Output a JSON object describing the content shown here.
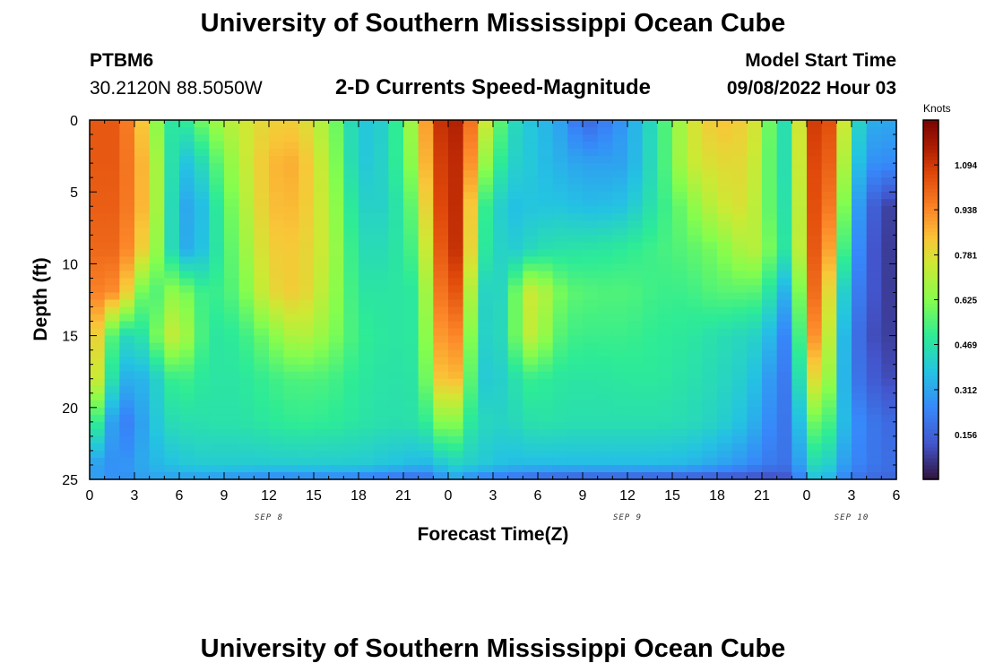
{
  "header": {
    "title": "University of Southern Mississippi Ocean Cube",
    "station": "PTBM6",
    "location": "30.2120N  88.5050W",
    "subtitle": "2-D Currents Speed-Magnitude",
    "start_label": "Model Start Time",
    "start_value": "09/08/2022 Hour 03"
  },
  "footer": {
    "title": "University of Southern Mississippi Ocean Cube"
  },
  "chart_data": {
    "type": "heatmap",
    "xlabel": "Forecast Time(Z)",
    "ylabel": "Depth (ft)",
    "x_tick_labels": [
      "0",
      "3",
      "6",
      "9",
      "12",
      "15",
      "18",
      "21",
      "0",
      "3",
      "6",
      "9",
      "12",
      "15",
      "18",
      "21",
      "0",
      "3",
      "6"
    ],
    "x_range_hours": [
      0,
      54
    ],
    "y_ticks": [
      0,
      5,
      10,
      15,
      20,
      25
    ],
    "y_range": [
      0,
      25
    ],
    "y_reversed": true,
    "date_labels": [
      {
        "label": "SEP 8",
        "hour": 12
      },
      {
        "label": "SEP 9",
        "hour": 36
      },
      {
        "label": "SEP 10",
        "hour": 51
      }
    ],
    "colorbar": {
      "title": "Knots",
      "ticks": [
        "1.094",
        "0.938",
        "0.781",
        "0.625",
        "0.469",
        "0.312",
        "0.156"
      ],
      "tick_values": [
        1.094,
        0.938,
        0.781,
        0.625,
        0.469,
        0.312,
        0.156
      ],
      "range": [
        0.0,
        1.25
      ],
      "colormap": "turbo"
    },
    "grid_step_hours": 1,
    "grid_step_depth_ft": 0.5,
    "speed_anchors_knots": {
      "depths_ft": [
        0,
        3,
        6,
        9,
        12,
        15,
        18,
        21,
        24,
        25
      ],
      "hours": [
        0,
        2,
        4,
        5,
        6,
        7,
        8,
        10,
        12,
        14,
        16,
        18,
        20,
        22,
        23,
        24,
        25,
        26,
        28,
        29,
        30,
        31,
        32,
        33,
        34,
        36,
        38,
        40,
        42,
        44,
        45,
        46,
        47,
        48,
        49,
        50,
        51,
        52,
        53,
        54
      ],
      "rows": [
        [
          1.03,
          1.03,
          0.77,
          0.51,
          0.46,
          0.55,
          0.64,
          0.74,
          0.81,
          0.82,
          0.66,
          0.38,
          0.42,
          0.75,
          1.05,
          1.17,
          1.12,
          0.84,
          0.47,
          0.41,
          0.36,
          0.34,
          0.27,
          0.17,
          0.2,
          0.3,
          0.48,
          0.74,
          0.85,
          0.81,
          0.72,
          0.46,
          0.46,
          1.06,
          1.12,
          0.98,
          0.52,
          0.33,
          0.33,
          0.31
        ],
        [
          1.03,
          1.03,
          0.81,
          0.55,
          0.38,
          0.38,
          0.51,
          0.7,
          0.86,
          0.88,
          0.69,
          0.38,
          0.43,
          0.7,
          1.03,
          1.14,
          1.11,
          0.73,
          0.42,
          0.41,
          0.37,
          0.35,
          0.32,
          0.31,
          0.3,
          0.31,
          0.48,
          0.73,
          0.79,
          0.79,
          0.69,
          0.46,
          0.46,
          1.03,
          1.1,
          0.93,
          0.46,
          0.27,
          0.27,
          0.25
        ],
        [
          1.02,
          1.02,
          0.81,
          0.55,
          0.34,
          0.3,
          0.43,
          0.66,
          0.85,
          0.86,
          0.71,
          0.42,
          0.42,
          0.62,
          0.99,
          1.14,
          1.1,
          0.56,
          0.36,
          0.38,
          0.38,
          0.38,
          0.38,
          0.36,
          0.36,
          0.38,
          0.49,
          0.61,
          0.74,
          0.78,
          0.66,
          0.49,
          0.45,
          1.0,
          1.1,
          0.84,
          0.39,
          0.19,
          0.11,
          0.07
        ],
        [
          1.0,
          1.0,
          0.75,
          0.55,
          0.34,
          0.32,
          0.43,
          0.62,
          0.82,
          0.83,
          0.72,
          0.45,
          0.45,
          0.56,
          0.92,
          1.14,
          1.08,
          0.52,
          0.39,
          0.42,
          0.45,
          0.47,
          0.47,
          0.48,
          0.48,
          0.5,
          0.53,
          0.56,
          0.61,
          0.71,
          0.7,
          0.51,
          0.46,
          0.98,
          1.08,
          0.71,
          0.35,
          0.16,
          0.09,
          0.07
        ],
        [
          0.96,
          0.92,
          0.49,
          0.62,
          0.66,
          0.55,
          0.5,
          0.57,
          0.79,
          0.83,
          0.69,
          0.48,
          0.48,
          0.49,
          0.85,
          1.1,
          0.97,
          0.42,
          0.44,
          0.74,
          0.75,
          0.64,
          0.57,
          0.56,
          0.55,
          0.55,
          0.52,
          0.52,
          0.56,
          0.56,
          0.55,
          0.4,
          0.28,
          0.94,
          1.04,
          0.54,
          0.28,
          0.16,
          0.09,
          0.07
        ],
        [
          0.93,
          0.43,
          0.49,
          0.72,
          0.74,
          0.6,
          0.48,
          0.5,
          0.61,
          0.72,
          0.64,
          0.51,
          0.48,
          0.49,
          0.78,
          1.04,
          0.84,
          0.41,
          0.45,
          0.73,
          0.72,
          0.58,
          0.53,
          0.52,
          0.52,
          0.52,
          0.5,
          0.49,
          0.46,
          0.43,
          0.41,
          0.3,
          0.2,
          0.86,
          0.98,
          0.47,
          0.24,
          0.13,
          0.09,
          0.08
        ],
        [
          0.88,
          0.33,
          0.35,
          0.48,
          0.54,
          0.5,
          0.48,
          0.48,
          0.52,
          0.55,
          0.54,
          0.49,
          0.47,
          0.48,
          0.71,
          0.97,
          0.74,
          0.39,
          0.42,
          0.51,
          0.51,
          0.49,
          0.48,
          0.48,
          0.48,
          0.49,
          0.49,
          0.47,
          0.44,
          0.4,
          0.34,
          0.24,
          0.2,
          0.71,
          0.86,
          0.45,
          0.24,
          0.16,
          0.12,
          0.1
        ],
        [
          0.61,
          0.2,
          0.34,
          0.44,
          0.46,
          0.46,
          0.47,
          0.47,
          0.49,
          0.51,
          0.5,
          0.48,
          0.46,
          0.47,
          0.54,
          0.72,
          0.54,
          0.44,
          0.42,
          0.46,
          0.47,
          0.47,
          0.46,
          0.46,
          0.46,
          0.46,
          0.46,
          0.45,
          0.42,
          0.36,
          0.3,
          0.22,
          0.2,
          0.54,
          0.64,
          0.43,
          0.29,
          0.22,
          0.19,
          0.17
        ],
        [
          0.31,
          0.26,
          0.34,
          0.36,
          0.38,
          0.4,
          0.4,
          0.4,
          0.4,
          0.4,
          0.4,
          0.4,
          0.38,
          0.35,
          0.35,
          0.42,
          0.41,
          0.4,
          0.36,
          0.36,
          0.36,
          0.36,
          0.36,
          0.36,
          0.36,
          0.36,
          0.36,
          0.35,
          0.31,
          0.27,
          0.23,
          0.2,
          0.2,
          0.4,
          0.48,
          0.34,
          0.26,
          0.22,
          0.2,
          0.18
        ],
        [
          0.31,
          0.26,
          0.31,
          0.3,
          0.3,
          0.29,
          0.29,
          0.26,
          0.24,
          0.24,
          0.24,
          0.22,
          0.2,
          0.17,
          0.2,
          0.32,
          0.28,
          0.23,
          0.2,
          0.18,
          0.16,
          0.15,
          0.14,
          0.14,
          0.14,
          0.14,
          0.13,
          0.13,
          0.12,
          0.11,
          0.1,
          0.1,
          0.13,
          0.34,
          0.4,
          0.28,
          0.22,
          0.18,
          0.17,
          0.16
        ]
      ]
    }
  }
}
